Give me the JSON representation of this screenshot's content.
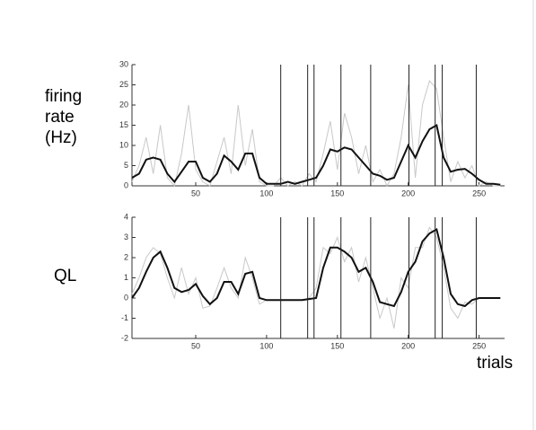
{
  "chart_data": [
    {
      "type": "line",
      "ylabel": "firing rate (Hz)",
      "xlim": [
        5,
        268
      ],
      "xticks": [
        50,
        100,
        150,
        200,
        250
      ],
      "ylim": [
        0,
        30
      ],
      "yticks": [
        0,
        5,
        10,
        15,
        20,
        25,
        30
      ],
      "vlines": [
        110,
        129,
        133.5,
        152.5,
        173.5,
        200.5,
        219,
        224,
        248
      ],
      "vline_color": "#222",
      "x": [
        5,
        10,
        15,
        20,
        25,
        30,
        35,
        40,
        45,
        50,
        55,
        60,
        65,
        70,
        75,
        80,
        85,
        90,
        95,
        100,
        105,
        110,
        115,
        120,
        125,
        130,
        135,
        140,
        145,
        150,
        155,
        160,
        165,
        170,
        175,
        180,
        185,
        190,
        195,
        200,
        205,
        210,
        215,
        220,
        225,
        230,
        235,
        240,
        245,
        250,
        255,
        260,
        265
      ],
      "series": [
        {
          "color": "#c8c8c8",
          "values": [
            1,
            5,
            12,
            3,
            15,
            2,
            0,
            8,
            20,
            4,
            1,
            0,
            6,
            12,
            3,
            20,
            5,
            14,
            1,
            0,
            0,
            2,
            0,
            1,
            0,
            3,
            1,
            8,
            16,
            4,
            18,
            12,
            3,
            10,
            1,
            4,
            0,
            3,
            12,
            25,
            2,
            20,
            26,
            24,
            12,
            1,
            6,
            2,
            5,
            0,
            1,
            0,
            0
          ]
        },
        {
          "color": "#111111",
          "values": [
            2,
            3,
            6.5,
            7,
            6.5,
            3,
            1,
            3.5,
            6,
            6,
            2,
            1,
            3,
            7.5,
            6,
            4,
            8,
            8,
            2,
            0.5,
            0.5,
            0.5,
            1,
            0.5,
            1,
            1.5,
            2,
            5,
            9,
            8.5,
            9.5,
            9,
            7,
            5,
            3,
            2.5,
            1.5,
            2,
            6,
            10,
            7,
            11,
            14,
            15,
            7,
            3.5,
            4,
            4.2,
            3,
            1.5,
            0.5,
            0.5,
            0.3
          ]
        }
      ]
    },
    {
      "type": "line",
      "ylabel": "QL",
      "xlabel": "trials",
      "xlim": [
        5,
        268
      ],
      "xticks": [
        50,
        100,
        150,
        200,
        250
      ],
      "ylim": [
        -2,
        4
      ],
      "yticks": [
        -2,
        -1,
        0,
        1,
        2,
        3,
        4
      ],
      "vlines": [
        110,
        129,
        133.5,
        152.5,
        173.5,
        200.5,
        219,
        224,
        248
      ],
      "vline_color": "#222",
      "x": [
        5,
        10,
        15,
        20,
        25,
        30,
        35,
        40,
        45,
        50,
        55,
        60,
        65,
        70,
        75,
        80,
        85,
        90,
        95,
        100,
        105,
        110,
        115,
        120,
        125,
        130,
        135,
        140,
        145,
        150,
        155,
        160,
        165,
        170,
        175,
        180,
        185,
        190,
        195,
        200,
        205,
        210,
        215,
        220,
        225,
        230,
        235,
        240,
        245,
        250,
        255,
        260,
        265
      ],
      "series": [
        {
          "color": "#c8c8c8",
          "values": [
            0.2,
            1,
            2,
            2.5,
            2.2,
            1,
            0,
            1.5,
            0.2,
            1,
            -0.5,
            -0.4,
            0.5,
            1.5,
            0.5,
            0,
            2,
            1,
            -0.3,
            -0.1,
            -0.1,
            -0.1,
            -0.1,
            -0.1,
            -0.1,
            0,
            0.5,
            2.5,
            2.2,
            3,
            1.8,
            2.5,
            0.8,
            2,
            0.5,
            -1,
            0,
            -1.5,
            1,
            0.5,
            2.5,
            2.5,
            3.5,
            3,
            1.5,
            -0.5,
            -1,
            -0.2,
            -0.3,
            0,
            0,
            0,
            0
          ]
        },
        {
          "color": "#111111",
          "values": [
            0,
            0.5,
            1.3,
            2,
            2.3,
            1.5,
            0.5,
            0.3,
            0.4,
            0.7,
            0.1,
            -0.3,
            0,
            0.8,
            0.8,
            0.2,
            1.2,
            1.3,
            0,
            -0.1,
            -0.1,
            -0.1,
            -0.1,
            -0.1,
            -0.1,
            -0.05,
            0,
            1.5,
            2.5,
            2.5,
            2.3,
            2,
            1.3,
            1.5,
            0.8,
            -0.2,
            -0.3,
            -0.4,
            0.3,
            1.3,
            1.8,
            2.8,
            3.2,
            3.4,
            2,
            0.2,
            -0.3,
            -0.4,
            -0.1,
            0,
            0,
            0,
            0
          ]
        }
      ]
    }
  ]
}
